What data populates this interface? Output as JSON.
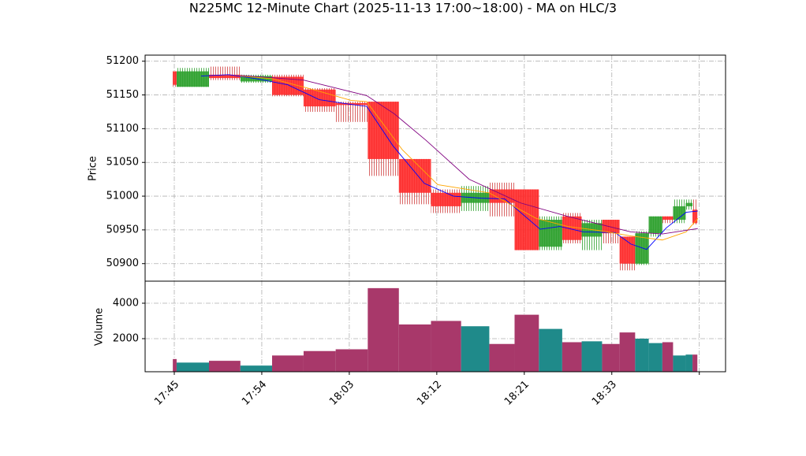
{
  "chart_data": {
    "type": "candlestick",
    "title": "N225MC 12-Minute Chart (2025-11-13 17:00~18:00) - MA on HLC/3",
    "ylabel": "Price",
    "y2label": "Volume",
    "grid": true,
    "up_color": "#2ca02c",
    "down_color": "#ff2a2a",
    "volume_up_color": "#1f8a8a",
    "volume_down_color": "#a8386a",
    "xlim": [
      -3,
      56.7
    ],
    "xticks": [
      {
        "value": 0,
        "label": "17:45"
      },
      {
        "value": 9,
        "label": "17:54"
      },
      {
        "value": 18,
        "label": "18:03"
      },
      {
        "value": 27,
        "label": "18:12"
      },
      {
        "value": 36,
        "label": "18:21"
      },
      {
        "value": 45,
        "label": "18:33"
      },
      {
        "value": 54,
        "label": null
      }
    ],
    "ylim": [
      50874,
      51209
    ],
    "yticks": [
      50900,
      50950,
      51000,
      51050,
      51100,
      51150,
      51200
    ],
    "vlim": [
      133,
      5244
    ],
    "vticks": [
      2000,
      4000
    ],
    "x_start": [
      -0.15,
      0.24,
      3.57,
      6.8,
      10.06,
      13.3,
      16.6,
      19.9,
      23.1,
      26.4,
      29.5,
      32.4,
      35.0,
      37.5,
      39.9,
      41.9,
      44.0,
      45.8,
      47.4,
      48.8,
      50.2,
      51.3,
      52.6,
      53.3
    ],
    "x_end": [
      0.24,
      3.57,
      6.8,
      10.06,
      13.3,
      16.6,
      19.9,
      23.1,
      26.4,
      29.5,
      32.4,
      35.0,
      37.5,
      39.9,
      41.9,
      44.0,
      45.8,
      47.4,
      48.8,
      50.2,
      51.3,
      52.6,
      53.3,
      53.8
    ],
    "open": [
      51185,
      51162,
      51180,
      51170,
      51177,
      51158,
      51138,
      51140,
      51055,
      51005,
      50990,
      51010,
      51010,
      50925,
      50970,
      50940,
      50965,
      50940,
      50900,
      50945,
      50970,
      50965,
      50985,
      50980
    ],
    "high": [
      51185,
      51190,
      51192,
      51180,
      51180,
      51160,
      51140,
      51140,
      51055,
      51010,
      51015,
      51020,
      51010,
      50970,
      50975,
      50965,
      50965,
      50940,
      50948,
      50970,
      50970,
      50995,
      50995,
      50995
    ],
    "low": [
      51162,
      51162,
      51172,
      51168,
      51148,
      51125,
      51110,
      51030,
      50988,
      50975,
      50978,
      50970,
      50920,
      50920,
      50930,
      50920,
      50930,
      50890,
      50898,
      50940,
      50960,
      50960,
      50980,
      50958
    ],
    "close": [
      51165,
      51185,
      51175,
      51178,
      51150,
      51133,
      51135,
      51055,
      51005,
      50985,
      51005,
      50990,
      50920,
      50965,
      50935,
      50960,
      50945,
      50900,
      50945,
      50970,
      50965,
      50985,
      50990,
      50960
    ],
    "volume": [
      850,
      650,
      750,
      480,
      1050,
      1300,
      1400,
      4850,
      2800,
      3000,
      2700,
      1700,
      3350,
      2550,
      1800,
      1850,
      1700,
      2350,
      2000,
      1750,
      1800,
      1050,
      1100,
      1100
    ],
    "ma": [
      {
        "color": "#0000ff",
        "x": [
          2.76,
          5.6,
          8.43,
          11.68,
          14.92,
          18.17,
          19.79,
          22.47,
          25.71,
          28.71,
          31.55,
          33.98,
          37.63,
          39.66,
          42.09,
          45.34,
          46.96,
          48.58,
          50.61,
          52.64,
          53.85
        ],
        "values": [
          51178,
          51180,
          51174,
          51165,
          51143,
          51136,
          51133,
          51075,
          51019,
          51000,
          50997,
          50996,
          50951,
          50955,
          50947,
          50946,
          50929,
          50921,
          50953,
          50976,
          50978
        ]
      },
      {
        "color": "#ffa500",
        "x": [
          6.81,
          10.06,
          14.52,
          18.17,
          19.79,
          23.44,
          27.09,
          32.36,
          37.23,
          40.47,
          43.71,
          46.96,
          50.2,
          52.64,
          53.85
        ],
        "values": [
          51178,
          51174,
          51157,
          51142,
          51140,
          51069,
          51017,
          51005,
          50967,
          50955,
          50949,
          50941,
          50935,
          50947,
          50967
        ]
      },
      {
        "color": "#800080",
        "x": [
          6.81,
          13.3,
          19.79,
          22.63,
          25.87,
          30.33,
          35.6,
          40.47,
          46.96,
          50.2,
          53.85
        ],
        "values": [
          51179,
          51172,
          51149,
          51122,
          51083,
          51025,
          50990,
          50970,
          50947,
          50944,
          50952
        ]
      }
    ]
  }
}
